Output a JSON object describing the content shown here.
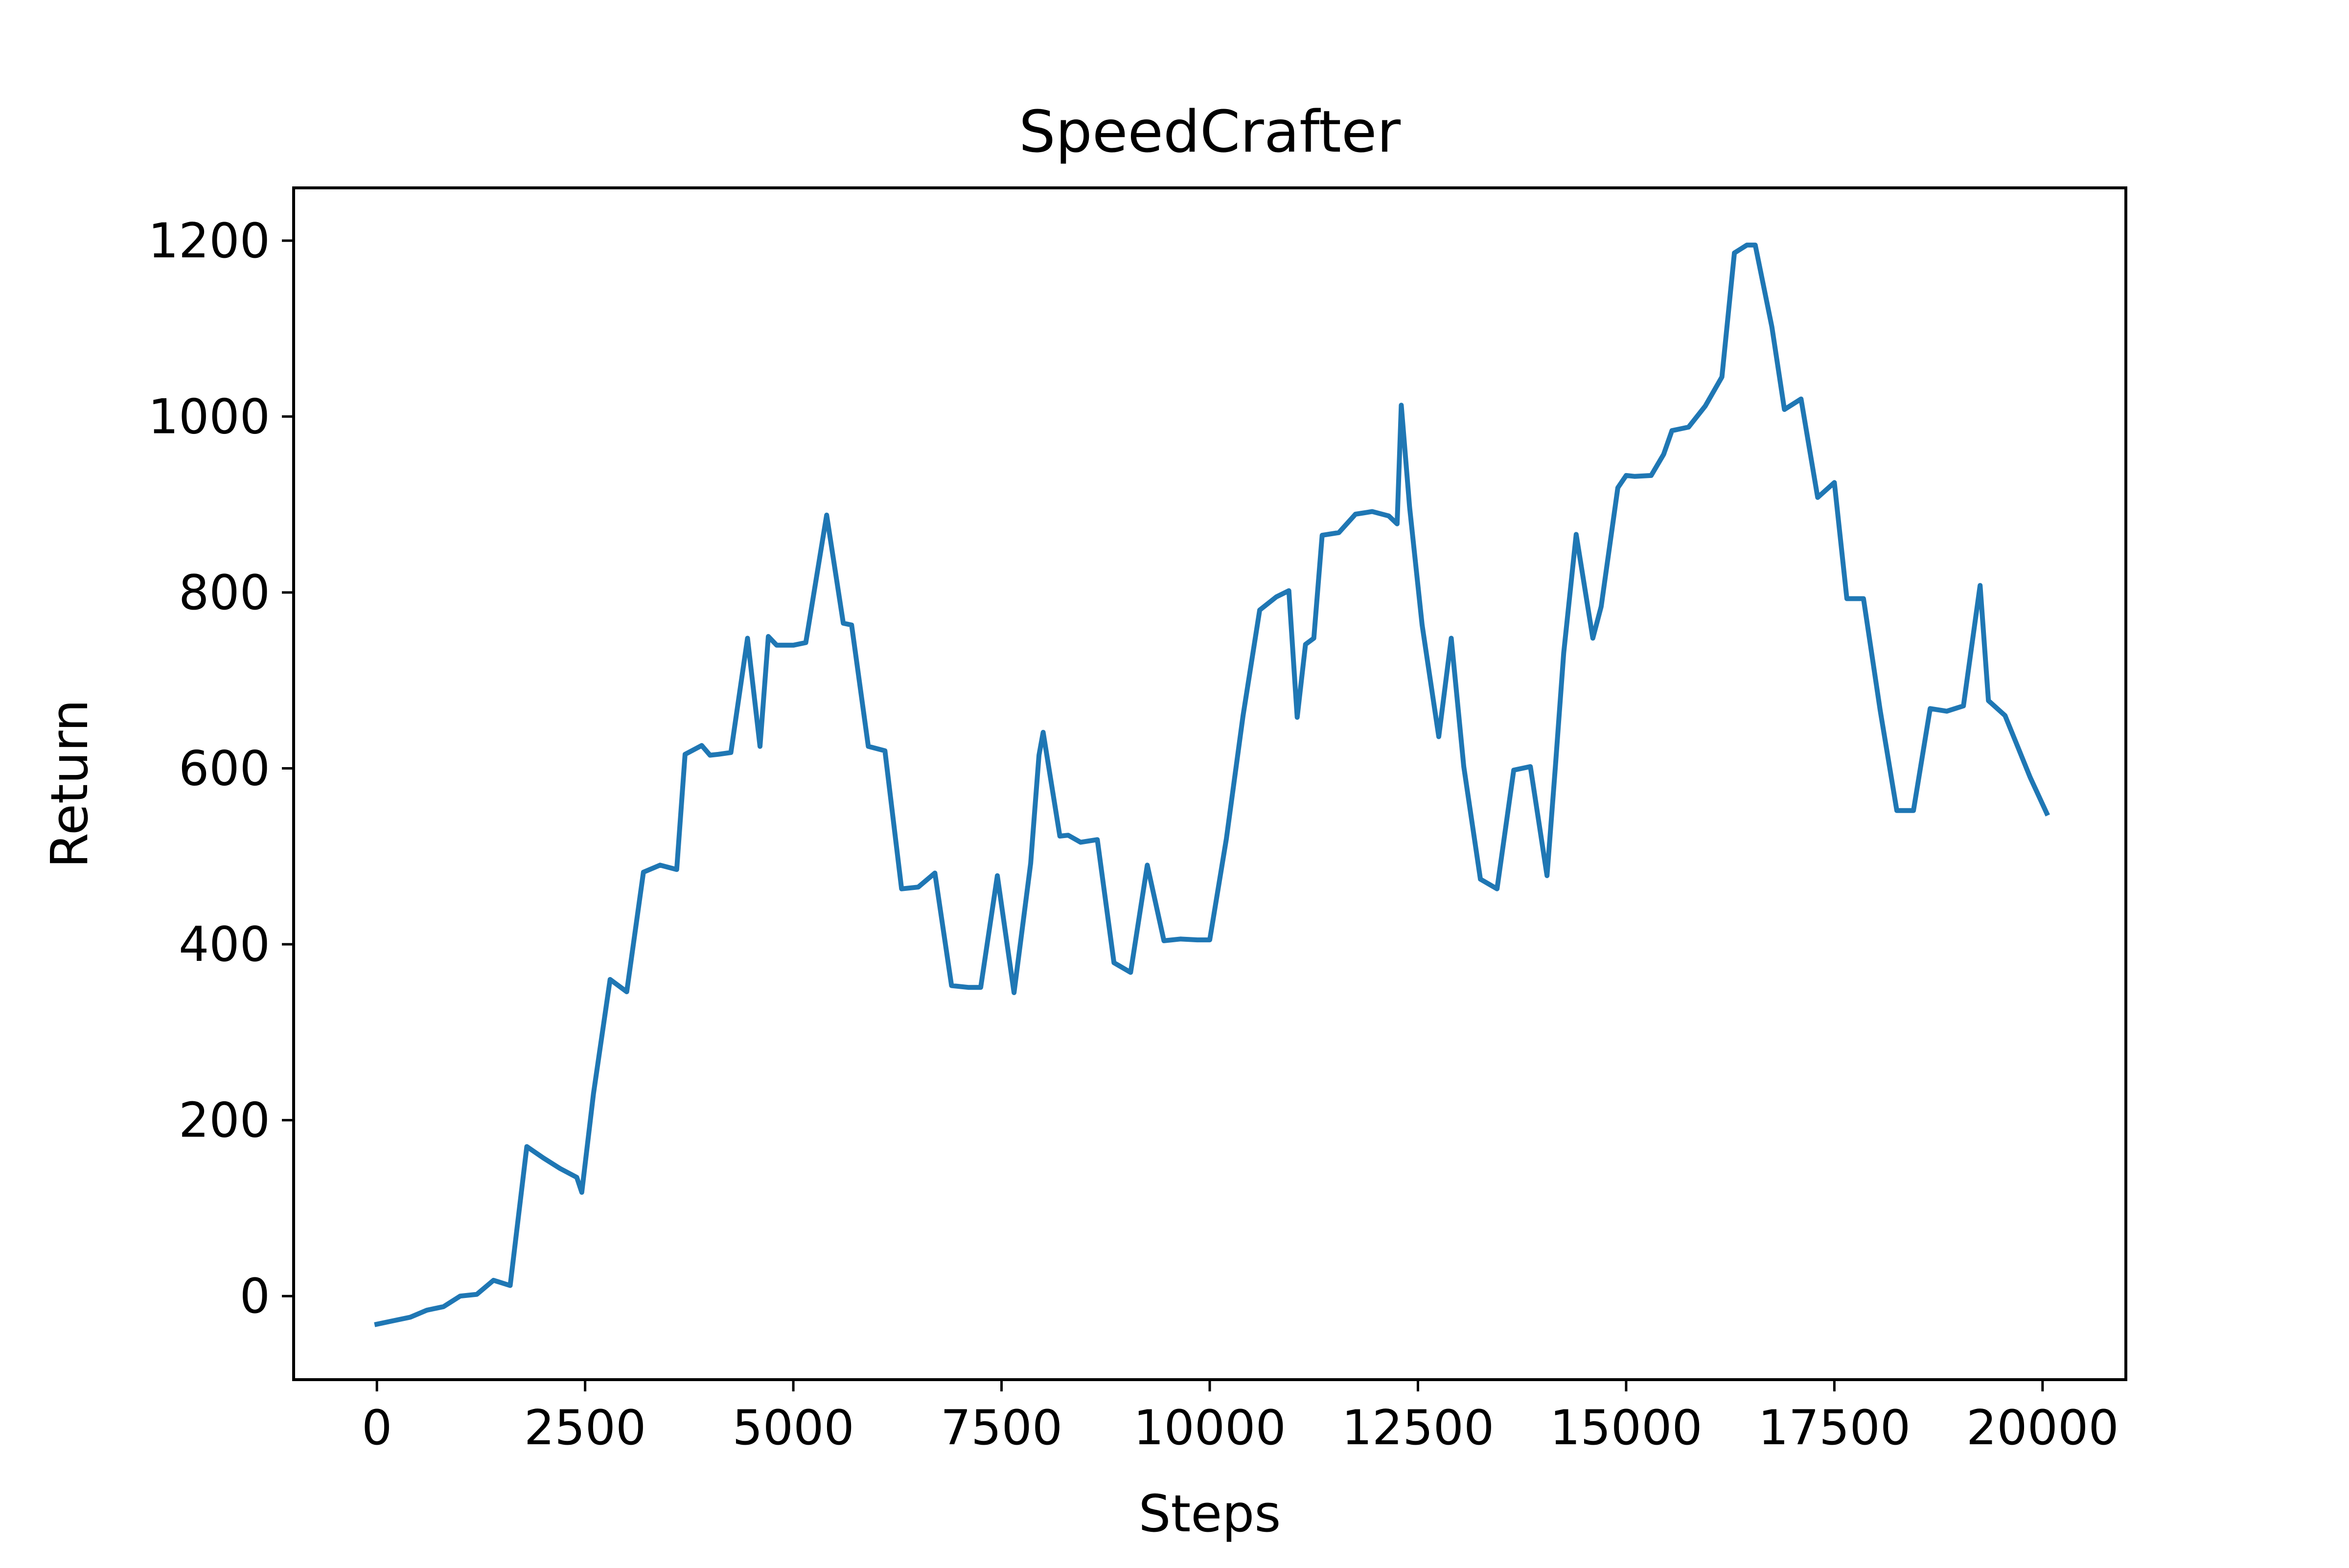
{
  "chart_data": {
    "type": "line",
    "title": "SpeedCrafter",
    "xlabel": "Steps",
    "ylabel": "Return",
    "xlim": [
      -1000,
      21000
    ],
    "ylim": [
      -95,
      1260
    ],
    "x_ticks": [
      0,
      2500,
      5000,
      7500,
      10000,
      12500,
      15000,
      17500,
      20000
    ],
    "x_tick_labels": [
      "0",
      "2500",
      "5000",
      "7500",
      "10000",
      "12500",
      "15000",
      "17500",
      "20000"
    ],
    "y_ticks": [
      0,
      200,
      400,
      600,
      800,
      1000,
      1200
    ],
    "y_tick_labels": [
      "0",
      "200",
      "400",
      "600",
      "800",
      "1000",
      "1200"
    ],
    "grid": false,
    "legend": "none",
    "series_color": "#1f77b4",
    "series": [
      {
        "x": [
          0,
          200,
          400,
          600,
          800,
          1000,
          1200,
          1400,
          1600,
          1800,
          2000,
          2200,
          2400,
          2460,
          2600,
          2800,
          3000,
          3200,
          3400,
          3600,
          3700,
          3900,
          4000,
          4100,
          4250,
          4450,
          4600,
          4700,
          4800,
          5000,
          5150,
          5400,
          5600,
          5700,
          5900,
          6100,
          6300,
          6500,
          6700,
          6900,
          7100,
          7250,
          7450,
          7650,
          7850,
          7950,
          8000,
          8200,
          8300,
          8450,
          8650,
          8850,
          9050,
          9250,
          9450,
          9650,
          9850,
          10000,
          10200,
          10400,
          10600,
          10800,
          10950,
          11050,
          11150,
          11250,
          11350,
          11550,
          11750,
          11950,
          12150,
          12250,
          12300,
          12400,
          12550,
          12750,
          12900,
          13050,
          13250,
          13450,
          13650,
          13850,
          14050,
          14150,
          14250,
          14400,
          14600,
          14700,
          14900,
          15000,
          15100,
          15300,
          15450,
          15550,
          15750,
          15950,
          16150,
          16300,
          16450,
          16550,
          16750,
          16900,
          17100,
          17300,
          17500,
          17650,
          17850,
          18050,
          18250,
          18450,
          18650,
          18850,
          19050,
          19250,
          19350,
          19550,
          19700,
          19850,
          20050
        ],
        "y": [
          -32,
          -28,
          -24,
          -16,
          -12,
          0,
          2,
          18,
          12,
          170,
          157,
          145,
          135,
          118,
          230,
          360,
          346,
          482,
          490,
          485,
          616,
          626,
          615,
          616,
          618,
          748,
          625,
          750,
          740,
          740,
          743,
          888,
          765,
          763,
          625,
          620,
          463,
          465,
          481,
          353,
          351,
          351,
          478,
          345,
          492,
          615,
          641,
          523,
          524,
          516,
          519,
          379,
          368,
          490,
          404,
          406,
          405,
          405,
          520,
          660,
          780,
          795,
          802,
          658,
          741,
          748,
          865,
          868,
          889,
          892,
          887,
          878,
          1013,
          897,
          763,
          636,
          748,
          602,
          474,
          463,
          598,
          602,
          478,
          602,
          731,
          866,
          748,
          784,
          919,
          933,
          932,
          933,
          957,
          984,
          988,
          1012,
          1045,
          1186,
          1195,
          1195,
          1102,
          1008,
          1020,
          908,
          925,
          793,
          793,
          666,
          552,
          552,
          668,
          665,
          671,
          808,
          677,
          660,
          625,
          590,
          549
        ]
      }
    ]
  }
}
